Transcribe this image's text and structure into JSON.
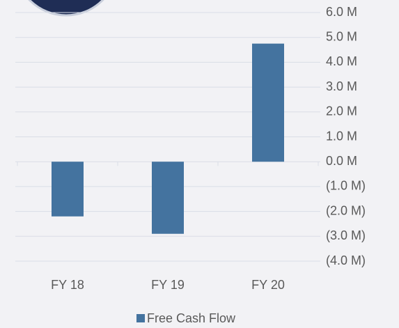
{
  "chart_data": {
    "type": "bar",
    "categories": [
      "FY 18",
      "FY 19",
      "FY 20"
    ],
    "series": [
      {
        "name": "Free Cash Flow",
        "color": "#44739f",
        "values": [
          -2200000,
          -2900000,
          4750000
        ]
      }
    ],
    "ylim": [
      -4000000,
      6000000
    ],
    "yticks": [
      {
        "value": -4000000,
        "label": "(4.0 M)"
      },
      {
        "value": -3000000,
        "label": "(3.0 M)"
      },
      {
        "value": -2000000,
        "label": "(2.0 M)"
      },
      {
        "value": -1000000,
        "label": "(1.0 M)"
      },
      {
        "value": 0,
        "label": "0.0 M"
      },
      {
        "value": 1000000,
        "label": "1.0 M"
      },
      {
        "value": 2000000,
        "label": "2.0 M"
      },
      {
        "value": 3000000,
        "label": "3.0 M"
      },
      {
        "value": 4000000,
        "label": "4.0 M"
      },
      {
        "value": 5000000,
        "label": "5.0 M"
      },
      {
        "value": 6000000,
        "label": "6.0 M"
      }
    ],
    "grid": true,
    "legend": "bottom"
  }
}
